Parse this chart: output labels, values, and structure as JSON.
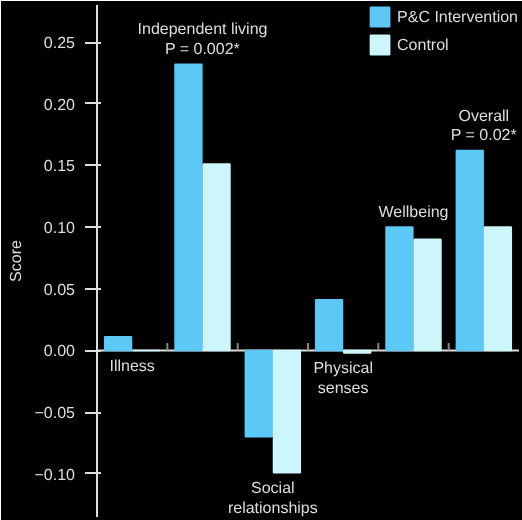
{
  "chart_data": {
    "type": "bar",
    "ylabel": "Score",
    "categories": [
      "Illness",
      "Independent living\nP = 0.002*",
      "Social\nrelationships",
      "Physical\nsenses",
      "Wellbeing",
      "Overall\nP = 0.02*"
    ],
    "series": [
      {
        "name": "P&C Intervention",
        "color": "#5bc8f5",
        "values": [
          0.011,
          0.232,
          -0.07,
          0.041,
          0.1,
          0.162
        ]
      },
      {
        "name": "Control",
        "color": "#ccf6fc",
        "values": [
          0.0,
          0.151,
          -0.099,
          -0.002,
          0.09,
          0.1
        ]
      }
    ],
    "ylim": [
      -0.135,
      0.28
    ],
    "yticks": [
      {
        "value": -0.1,
        "label": "−0.10"
      },
      {
        "value": -0.05,
        "label": "−0.05"
      },
      {
        "value": 0,
        "label": "0.00"
      },
      {
        "value": 0.05,
        "label": "0.05"
      },
      {
        "value": 0.1,
        "label": "0.10"
      },
      {
        "value": 0.15,
        "label": "0.15"
      },
      {
        "value": 0.2,
        "label": "0.20"
      },
      {
        "value": 0.25,
        "label": "0.25"
      }
    ],
    "grid": false,
    "legend": "top right"
  }
}
